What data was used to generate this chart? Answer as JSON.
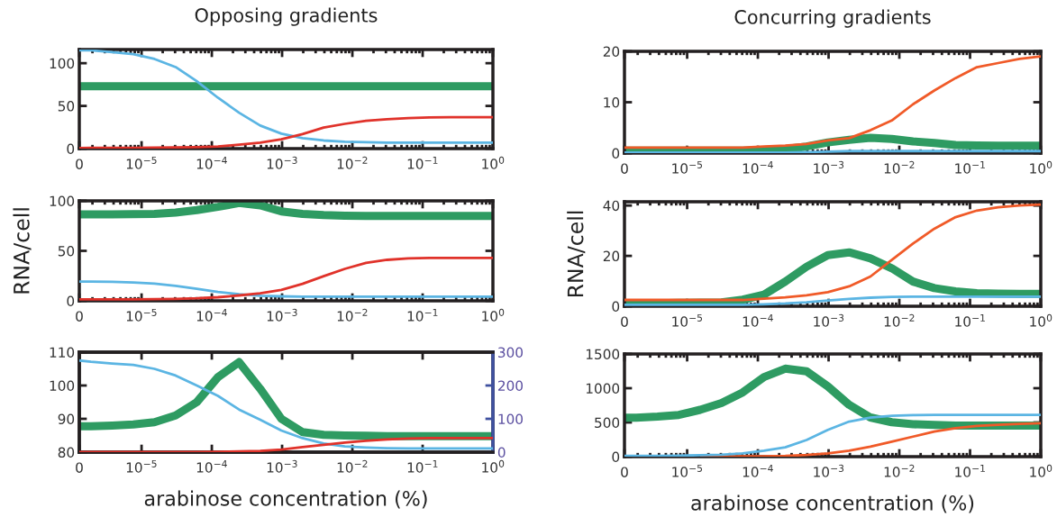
{
  "chart_data": [
    {
      "type": "line",
      "title": "Opposing gradients",
      "log": "x",
      "xlim": [
        1.3e-06,
        1
      ],
      "ylim": [
        0,
        116
      ],
      "yticks": [
        0,
        50,
        100
      ],
      "xticks": [
        {
          "value": 1.3e-06,
          "label": "0"
        },
        {
          "value": 1e-05,
          "label": "10$^{−5}$"
        },
        {
          "value": 0.0001,
          "label": "10$^{−4}$"
        },
        {
          "value": 0.001,
          "label": "10$^{−3}$"
        },
        {
          "value": 0.01,
          "label": "10$^{−2}$"
        },
        {
          "value": 0.1,
          "label": "10$^{−1}$"
        },
        {
          "value": 1,
          "label": "10$^{0}$"
        }
      ],
      "x": [
        1.3e-06,
        1.907e-06,
        3.815e-06,
        7.629e-06,
        1.526e-05,
        3.052e-05,
        6.104e-05,
        0.0001221,
        0.0002441,
        0.0004883,
        0.0009766,
        0.001953,
        0.003906,
        0.007813,
        0.01563,
        0.03125,
        0.0625,
        0.125,
        0.25,
        0.5,
        1
      ],
      "series": [
        {
          "color": "#2e9b62",
          "values": [
            73,
            73,
            73,
            73,
            73,
            73,
            73,
            73,
            73,
            73,
            73,
            73,
            73,
            73,
            73,
            73,
            73,
            73,
            73,
            73,
            73
          ]
        },
        {
          "color": "#5bb5e3",
          "values": [
            115,
            115,
            113,
            110.5,
            105,
            95.5,
            79,
            59.6,
            42,
            27,
            17.5,
            12.3,
            9.5,
            8,
            7.4,
            7,
            7,
            7,
            7,
            7,
            7
          ]
        },
        {
          "color": "#e0322a",
          "values": [
            0.7,
            1,
            1,
            1,
            1.2,
            1.5,
            1.8,
            2.5,
            4.6,
            7,
            11,
            17,
            24.6,
            29,
            32.6,
            34.4,
            35.8,
            36.5,
            36.8,
            36.8,
            36.8
          ]
        }
      ]
    },
    {
      "type": "line",
      "title": "Concurring gradients",
      "log": "x",
      "xlim": [
        1.3e-06,
        1
      ],
      "ylim": [
        0,
        20
      ],
      "yticks": [
        0,
        10,
        20
      ],
      "xticks": [
        {
          "value": 1.3e-06,
          "label": "0"
        },
        {
          "value": 1e-05,
          "label": "10$^{−5}$"
        },
        {
          "value": 0.0001,
          "label": "10$^{−4}$"
        },
        {
          "value": 0.001,
          "label": "10$^{−3}$"
        },
        {
          "value": 0.01,
          "label": "10$^{−2}$"
        },
        {
          "value": 0.1,
          "label": "10$^{−1}$"
        },
        {
          "value": 1,
          "label": "10$^{0}$"
        }
      ],
      "x": [
        1.3e-06,
        1.907e-06,
        3.815e-06,
        7.629e-06,
        1.526e-05,
        3.052e-05,
        6.104e-05,
        0.0001221,
        0.0002441,
        0.0004883,
        0.0009766,
        0.001953,
        0.003906,
        0.007813,
        0.01563,
        0.03125,
        0.0625,
        0.125,
        0.25,
        0.5,
        1
      ],
      "series": [
        {
          "color": "#2e9b62",
          "values": [
            0.5,
            0.5,
            0.5,
            0.5,
            0.5,
            0.5,
            0.5,
            0.6,
            0.8,
            1.3,
            2.1,
            2.6,
            3,
            2.8,
            2.3,
            2.0,
            1.6,
            1.5,
            1.45,
            1.45,
            1.45
          ]
        },
        {
          "color": "#5bb5e3",
          "values": [
            0.1,
            0.1,
            0.1,
            0.1,
            0.1,
            0.1,
            0.1,
            0.1,
            0.1,
            0.2,
            0.3,
            0.4,
            0.4,
            0.4,
            0.4,
            0.4,
            0.4,
            0.4,
            0.4,
            0.4,
            0.4
          ]
        },
        {
          "color": "#f05a28",
          "values": [
            1.1,
            1.1,
            1.1,
            1.1,
            1.1,
            1.1,
            1.1,
            1.3,
            1.5,
            1.8,
            2.5,
            2.95,
            4.5,
            6.4,
            9.6,
            12.3,
            14.75,
            16.9,
            17.7,
            18.5,
            19.0
          ]
        }
      ]
    },
    {
      "type": "line",
      "ylabel": "RNA/cell",
      "log": "x",
      "xlim": [
        1.3e-06,
        1
      ],
      "ylim": [
        0,
        100
      ],
      "yticks": [
        0,
        50,
        100
      ],
      "xticks": [
        {
          "value": 1.3e-06,
          "label": "0"
        },
        {
          "value": 1e-05,
          "label": "10$^{−5}$"
        },
        {
          "value": 0.0001,
          "label": "10$^{−4}$"
        },
        {
          "value": 0.001,
          "label": "10$^{−3}$"
        },
        {
          "value": 0.01,
          "label": "10$^{−2}$"
        },
        {
          "value": 0.1,
          "label": "10$^{−1}$"
        },
        {
          "value": 1,
          "label": "10$^{0}$"
        }
      ],
      "x": [
        1.3e-06,
        1.907e-06,
        3.815e-06,
        7.629e-06,
        1.526e-05,
        3.052e-05,
        6.104e-05,
        0.0001221,
        0.0002441,
        0.0004883,
        0.0009766,
        0.001953,
        0.003906,
        0.007813,
        0.01563,
        0.03125,
        0.0625,
        0.125,
        0.25,
        0.5,
        1
      ],
      "series": [
        {
          "color": "#2e9b62",
          "values": [
            86.4,
            86.4,
            86.4,
            86.7,
            87,
            88.3,
            90.7,
            94,
            97.9,
            95.5,
            89.5,
            87,
            85.8,
            85.2,
            84.9,
            84.9,
            84.9,
            84.9,
            84.9,
            84.9,
            84.9
          ]
        },
        {
          "color": "#5bb5e3",
          "values": [
            19.3,
            19.3,
            19,
            18.4,
            17.2,
            15,
            12,
            9,
            6.6,
            5.1,
            4.5,
            4.2,
            4.2,
            4.2,
            4.2,
            4.2,
            4.2,
            4.2,
            4.2,
            4.2,
            4.2
          ]
        },
        {
          "color": "#e0322a",
          "values": [
            1.5,
            1.5,
            1.5,
            1.5,
            1.7,
            2,
            2.5,
            3.6,
            5.4,
            7.5,
            11,
            17,
            24.7,
            32,
            38,
            41,
            42.5,
            43,
            43,
            43,
            43
          ]
        }
      ]
    },
    {
      "type": "line",
      "ylabel": "RNA/cell",
      "log": "x",
      "xlim": [
        1.3e-06,
        1
      ],
      "ylim": [
        0,
        41.5
      ],
      "yticks": [
        0,
        20,
        40
      ],
      "xticks": [
        {
          "value": 1.3e-06,
          "label": "0"
        },
        {
          "value": 1e-05,
          "label": "10$^{−5}$"
        },
        {
          "value": 0.0001,
          "label": "10$^{−4}$"
        },
        {
          "value": 0.001,
          "label": "10$^{−3}$"
        },
        {
          "value": 0.01,
          "label": "10$^{−2}$"
        },
        {
          "value": 0.1,
          "label": "10$^{−1}$"
        },
        {
          "value": 1,
          "label": "10$^{0}$"
        }
      ],
      "x": [
        1.3e-06,
        1.907e-06,
        3.815e-06,
        7.629e-06,
        1.526e-05,
        3.052e-05,
        6.104e-05,
        0.0001221,
        0.0002441,
        0.0004883,
        0.0009766,
        0.001953,
        0.003906,
        0.007813,
        0.01563,
        0.03125,
        0.0625,
        0.125,
        0.25,
        0.5,
        1
      ],
      "series": [
        {
          "color": "#2e9b62",
          "values": [
            1.2,
            1.2,
            1.2,
            1.3,
            1.4,
            1.5,
            2.6,
            4.6,
            9.8,
            15.7,
            20.3,
            21.4,
            19,
            15.1,
            9.8,
            7.2,
            5.9,
            5.2,
            5,
            4.9,
            4.9
          ]
        },
        {
          "color": "#5bb5e3",
          "values": [
            0.6,
            0.6,
            0.6,
            0.6,
            0.6,
            0.6,
            0.6,
            0.8,
            1.1,
            1.6,
            2.3,
            2.9,
            3.4,
            3.7,
            3.8,
            3.8,
            3.8,
            3.8,
            3.8,
            3.8,
            3.8
          ]
        },
        {
          "color": "#f05a28",
          "values": [
            2.5,
            2.5,
            2.5,
            2.5,
            2.5,
            2.5,
            2.5,
            3,
            3.5,
            4.3,
            5.6,
            7.9,
            11.8,
            18.4,
            24.9,
            30.8,
            35.4,
            38,
            39.3,
            40,
            40.4
          ]
        }
      ]
    },
    {
      "type": "line",
      "xlabel": "arabinose concentration (%)",
      "log": "x",
      "xlim": [
        1.3e-06,
        1
      ],
      "ylim": [
        80,
        110
      ],
      "yticks": [
        80,
        90,
        100,
        110
      ],
      "y2lim": [
        0,
        300
      ],
      "y2ticks": [
        0,
        100,
        200,
        300
      ],
      "xticks": [
        {
          "value": 1.3e-06,
          "label": "0"
        },
        {
          "value": 1e-05,
          "label": "10$^{−5}$"
        },
        {
          "value": 0.0001,
          "label": "10$^{−4}$"
        },
        {
          "value": 0.001,
          "label": "10$^{−3}$"
        },
        {
          "value": 0.01,
          "label": "10$^{−2}$"
        },
        {
          "value": 0.1,
          "label": "10$^{−1}$"
        },
        {
          "value": 1,
          "label": "10$^{0}$"
        }
      ],
      "x": [
        1.3e-06,
        1.907e-06,
        3.815e-06,
        7.629e-06,
        1.526e-05,
        3.052e-05,
        6.104e-05,
        0.0001221,
        0.0002441,
        0.0004883,
        0.0009766,
        0.001953,
        0.003906,
        0.007813,
        0.01563,
        0.03125,
        0.0625,
        0.125,
        0.25,
        0.5,
        1
      ],
      "series": [
        {
          "color": "#2e9b62",
          "values": [
            87.8,
            87.8,
            88.0,
            88.3,
            89,
            91,
            95,
            102.5,
            107,
            99,
            90,
            86,
            85.2,
            85,
            84.9,
            84.8,
            84.8,
            84.8,
            84.8,
            84.8,
            84.8
          ]
        },
        {
          "color": "#5bb5e3",
          "axis": "y2",
          "values": [
            275,
            271,
            266,
            262,
            250,
            230,
            200,
            169,
            128,
            97,
            65,
            42,
            26,
            17,
            14,
            12,
            11,
            11,
            11,
            11,
            11
          ]
        },
        {
          "color": "#e0322a",
          "axis": "y2",
          "values": [
            0,
            0,
            0,
            0,
            0,
            0,
            0.5,
            1,
            2,
            4,
            8,
            15,
            22,
            29,
            34,
            38,
            41,
            42,
            42.5,
            42.5,
            42.5
          ]
        }
      ]
    },
    {
      "type": "line",
      "xlabel": "arabinose concentration (%)",
      "log": "x",
      "xlim": [
        1.3e-06,
        1
      ],
      "ylim": [
        0,
        1500
      ],
      "yticks": [
        0,
        500,
        1000,
        1500
      ],
      "xticks": [
        {
          "value": 1.3e-06,
          "label": "0"
        },
        {
          "value": 1e-05,
          "label": "10$^{−5}$"
        },
        {
          "value": 0.0001,
          "label": "10$^{−4}$"
        },
        {
          "value": 0.001,
          "label": "10$^{−3}$"
        },
        {
          "value": 0.01,
          "label": "10$^{−2}$"
        },
        {
          "value": 0.1,
          "label": "10$^{−1}$"
        },
        {
          "value": 1,
          "label": "10$^{0}$"
        }
      ],
      "x": [
        1.3e-06,
        1.907e-06,
        3.815e-06,
        7.629e-06,
        1.526e-05,
        3.052e-05,
        6.104e-05,
        0.0001221,
        0.0002441,
        0.0004883,
        0.0009766,
        0.001953,
        0.003906,
        0.007813,
        0.01563,
        0.03125,
        0.0625,
        0.125,
        0.25,
        0.5,
        1
      ],
      "series": [
        {
          "color": "#2e9b62",
          "values": [
            570,
            570,
            585,
            610,
            684,
            782,
            938,
            1163,
            1285,
            1246,
            1026,
            757,
            572,
            503,
            474,
            464,
            454,
            454,
            454,
            454,
            454
          ]
        },
        {
          "color": "#f05a28",
          "values": [
            null,
            null,
            null,
            null,
            1,
            2,
            4,
            6,
            10,
            24,
            49,
            88,
            147,
            220,
            293,
            366,
            415,
            449,
            464,
            479,
            488
          ]
        },
        {
          "color": "#5bb5e3",
          "values": [
            10,
            10,
            12,
            15,
            20,
            29,
            49,
            88,
            137,
            244,
            391,
            513,
            572,
            596,
            606,
            611,
            611,
            611,
            611,
            611,
            611
          ]
        }
      ]
    }
  ]
}
